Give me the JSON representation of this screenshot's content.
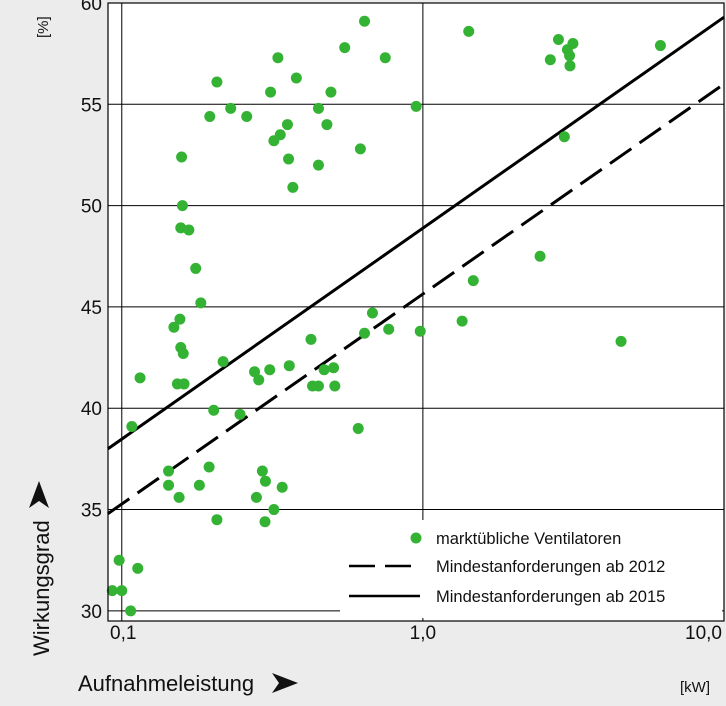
{
  "chart_data": {
    "type": "scatter",
    "title": "",
    "xlabel": "Aufnahmeleistung",
    "ylabel": "Wirkungsgrad",
    "x_unit": "[kW]",
    "y_unit": "[%]",
    "x_scale": "log",
    "xlim": [
      0.09,
      10.0
    ],
    "ylim": [
      29.5,
      60
    ],
    "x_ticks": [
      0.1,
      1.0,
      10.0
    ],
    "x_tick_labels": [
      "0,1",
      "1,0",
      "10,0"
    ],
    "y_ticks": [
      30,
      35,
      40,
      45,
      50,
      55,
      60
    ],
    "y_tick_labels": [
      "30",
      "35",
      "40",
      "45",
      "50",
      "55",
      "60"
    ],
    "grid": true,
    "legend_position": "bottom-right",
    "colors": {
      "points": "#33b233",
      "lines": "#000000",
      "plot_bg": "#ffffff",
      "frame_bg": "#ececec"
    },
    "series": [
      {
        "name": "marktübliche Ventilatoren",
        "type": "scatter",
        "points": [
          [
            0.093,
            31.0
          ],
          [
            0.1,
            31.0
          ],
          [
            0.098,
            32.5
          ],
          [
            0.107,
            30.0
          ],
          [
            0.113,
            32.1
          ],
          [
            0.108,
            39.1
          ],
          [
            0.115,
            41.5
          ],
          [
            0.143,
            36.9
          ],
          [
            0.143,
            36.2
          ],
          [
            0.155,
            35.6
          ],
          [
            0.149,
            44.0
          ],
          [
            0.156,
            44.4
          ],
          [
            0.157,
            43.0
          ],
          [
            0.16,
            42.7
          ],
          [
            0.153,
            41.2
          ],
          [
            0.161,
            41.2
          ],
          [
            0.157,
            48.9
          ],
          [
            0.167,
            48.8
          ],
          [
            0.159,
            50.0
          ],
          [
            0.158,
            52.4
          ],
          [
            0.176,
            46.9
          ],
          [
            0.183,
            45.2
          ],
          [
            0.181,
            36.2
          ],
          [
            0.195,
            37.1
          ],
          [
            0.202,
            39.9
          ],
          [
            0.207,
            34.5
          ],
          [
            0.217,
            42.3
          ],
          [
            0.196,
            54.4
          ],
          [
            0.207,
            56.1
          ],
          [
            0.23,
            54.8
          ],
          [
            0.247,
            39.7
          ],
          [
            0.26,
            54.4
          ],
          [
            0.276,
            41.8
          ],
          [
            0.28,
            35.6
          ],
          [
            0.285,
            41.4
          ],
          [
            0.293,
            36.9
          ],
          [
            0.3,
            36.4
          ],
          [
            0.299,
            34.4
          ],
          [
            0.31,
            41.9
          ],
          [
            0.312,
            55.6
          ],
          [
            0.32,
            35.0
          ],
          [
            0.33,
            57.3
          ],
          [
            0.32,
            53.2
          ],
          [
            0.336,
            53.5
          ],
          [
            0.341,
            36.1
          ],
          [
            0.355,
            54.0
          ],
          [
            0.358,
            52.3
          ],
          [
            0.36,
            42.1
          ],
          [
            0.37,
            50.9
          ],
          [
            0.38,
            56.3
          ],
          [
            0.425,
            43.4
          ],
          [
            0.43,
            41.1
          ],
          [
            0.45,
            41.1
          ],
          [
            0.45,
            54.8
          ],
          [
            0.45,
            52.0
          ],
          [
            0.47,
            41.9
          ],
          [
            0.48,
            54.0
          ],
          [
            0.495,
            55.6
          ],
          [
            0.505,
            42.0
          ],
          [
            0.51,
            41.1
          ],
          [
            0.55,
            57.8
          ],
          [
            0.61,
            39.0
          ],
          [
            0.62,
            52.8
          ],
          [
            0.64,
            59.1
          ],
          [
            0.64,
            43.7
          ],
          [
            0.68,
            44.7
          ],
          [
            0.75,
            57.3
          ],
          [
            0.77,
            43.9
          ],
          [
            0.95,
            54.9
          ],
          [
            0.98,
            43.8
          ],
          [
            1.35,
            44.3
          ],
          [
            1.42,
            58.6
          ],
          [
            1.47,
            46.3
          ],
          [
            2.45,
            47.5
          ],
          [
            2.65,
            57.2
          ],
          [
            2.82,
            58.2
          ],
          [
            2.95,
            53.4
          ],
          [
            3.02,
            57.7
          ],
          [
            3.07,
            57.4
          ],
          [
            3.08,
            56.9
          ],
          [
            3.15,
            58.0
          ],
          [
            4.55,
            43.3
          ],
          [
            6.15,
            57.9
          ]
        ]
      },
      {
        "name": "Mindestanforderungen ab 2012",
        "type": "line",
        "style": "dashed",
        "points": [
          [
            0.09,
            34.8
          ],
          [
            10.0,
            56.0
          ]
        ]
      },
      {
        "name": "Mindestanforderungen ab 2015",
        "type": "line",
        "style": "solid",
        "points": [
          [
            0.09,
            38.0
          ],
          [
            10.0,
            59.3
          ]
        ]
      }
    ]
  }
}
